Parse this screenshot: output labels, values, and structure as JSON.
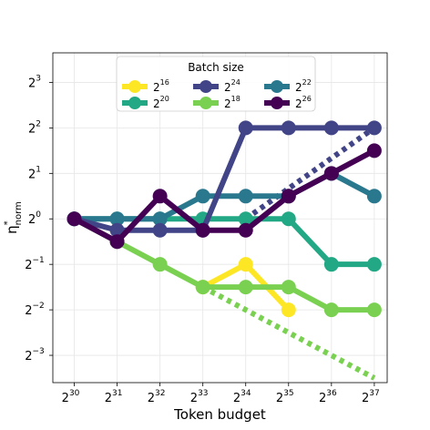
{
  "chart_data": {
    "type": "line",
    "xlabel": "Token budget",
    "ylabel_base": "η",
    "ylabel_sup": "*",
    "ylabel_sub": "norm",
    "x_log2": [
      30,
      31,
      32,
      33,
      34,
      35,
      36,
      37
    ],
    "x_tick_labels": [
      {
        "base": "2",
        "exp": "30"
      },
      {
        "base": "2",
        "exp": "31"
      },
      {
        "base": "2",
        "exp": "32"
      },
      {
        "base": "2",
        "exp": "33"
      },
      {
        "base": "2",
        "exp": "34"
      },
      {
        "base": "2",
        "exp": "35"
      },
      {
        "base": "2",
        "exp": "36"
      },
      {
        "base": "2",
        "exp": "37"
      }
    ],
    "y_ticks_log2": [
      3,
      2,
      1,
      0,
      -1,
      -2,
      -3
    ],
    "y_tick_labels": [
      {
        "base": "2",
        "exp": "3"
      },
      {
        "base": "2",
        "exp": "2"
      },
      {
        "base": "2",
        "exp": "1"
      },
      {
        "base": "2",
        "exp": "0"
      },
      {
        "base": "2",
        "exp": "−1"
      },
      {
        "base": "2",
        "exp": "−2"
      },
      {
        "base": "2",
        "exp": "−3"
      }
    ],
    "xlim_log2": [
      29.5,
      37.3
    ],
    "ylim_log2": [
      -3.6,
      3.65
    ],
    "y_scale": "log2",
    "x_scale": "log2",
    "grid": true,
    "legend": {
      "title": "Batch size",
      "placement": "upper-center",
      "columns": 3,
      "order": [
        0,
        2,
        4,
        1,
        3,
        5
      ]
    },
    "series": [
      {
        "name": {
          "base": "2",
          "exp": "16"
        },
        "color": "#fde725",
        "x_log2": [
          33,
          34,
          35
        ],
        "y_log2": [
          -3,
          -2,
          -4
        ]
      },
      {
        "name": {
          "base": "2",
          "exp": "18"
        },
        "color": "#7ad151",
        "x_log2": [
          30,
          31,
          32,
          33,
          34,
          35,
          36,
          37
        ],
        "y_log2": [
          0,
          -1,
          -2,
          -3,
          -3,
          -3,
          -4,
          -4
        ]
      },
      {
        "name": {
          "base": "2",
          "exp": "20"
        },
        "color": "#22a884",
        "x_log2": [
          30,
          31,
          32,
          33,
          34,
          35,
          36,
          37
        ],
        "y_log2": [
          0,
          0,
          0,
          0,
          0,
          0,
          -2,
          -2
        ]
      },
      {
        "name": {
          "base": "2",
          "exp": "22"
        },
        "color": "#2a788e",
        "x_log2": [
          30,
          31,
          32,
          33,
          34,
          35,
          36,
          37
        ],
        "y_log2": [
          0,
          0,
          0,
          1,
          1,
          1,
          2,
          1
        ]
      },
      {
        "name": {
          "base": "2",
          "exp": "24"
        },
        "color": "#414487",
        "x_log2": [
          30,
          31,
          32,
          33,
          34,
          35,
          36,
          37
        ],
        "y_log2": [
          0,
          -0.5,
          -0.5,
          -0.5,
          4,
          4,
          4,
          4
        ]
      },
      {
        "name": {
          "base": "2",
          "exp": "26"
        },
        "color": "#440154",
        "x_log2": [
          30,
          31,
          32,
          33,
          34,
          35,
          36,
          37
        ],
        "y_log2": [
          0,
          -1,
          1,
          -0.5,
          -0.5,
          1,
          2,
          3
        ]
      }
    ],
    "y_values_note_scale": 0.5,
    "dotted_extrapolations": [
      {
        "color": "#7ad151",
        "x_log2": [
          33,
          37
        ],
        "y_log2": [
          -1.5,
          -3.5
        ]
      },
      {
        "color": "#414487",
        "x_log2": [
          34,
          37
        ],
        "y_log2": [
          0,
          2
        ]
      }
    ]
  }
}
